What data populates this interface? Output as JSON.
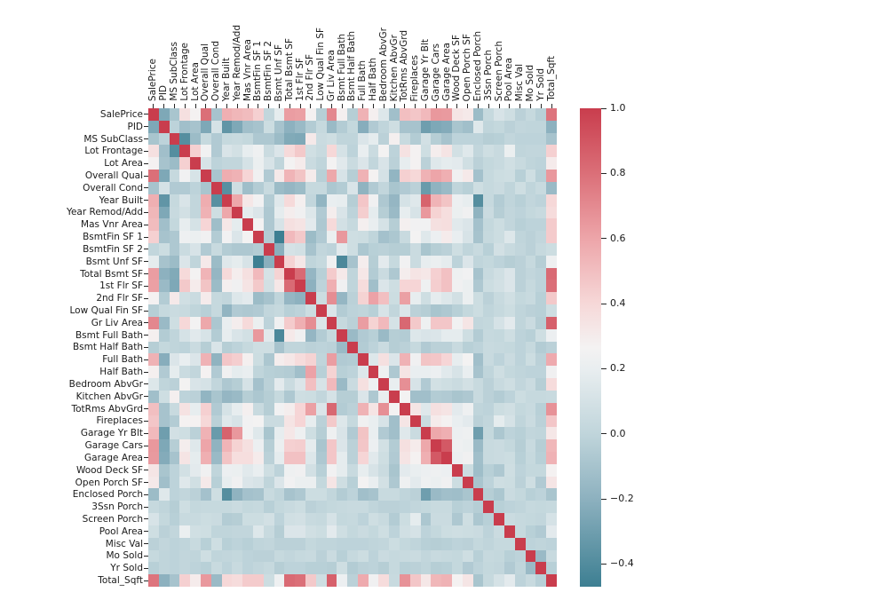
{
  "figure": {
    "background": "#ffffff",
    "title": ""
  },
  "chart_data": {
    "type": "heatmap",
    "title": "",
    "description": "Correlation matrix heatmap of Ames housing features",
    "labels": [
      "SalePrice",
      "PID",
      "MS SubClass",
      "Lot Frontage",
      "Lot Area",
      "Overall Qual",
      "Overall Cond",
      "Year Built",
      "Year Remod/Add",
      "Mas Vnr Area",
      "BsmtFin SF 1",
      "BsmtFin SF 2",
      "Bsmt Unf SF",
      "Total Bsmt SF",
      "1st Flr SF",
      "2nd Flr SF",
      "Low Qual Fin SF",
      "Gr Liv Area",
      "Bsmt Full Bath",
      "Bsmt Half Bath",
      "Full Bath",
      "Half Bath",
      "Bedroom AbvGr",
      "Kitchen AbvGr",
      "TotRms AbvGrd",
      "Fireplaces",
      "Garage Yr Blt",
      "Garage Cars",
      "Garage Area",
      "Wood Deck SF",
      "Open Porch SF",
      "Enclosed Porch",
      "3Ssn Porch",
      "Screen Porch",
      "Pool Area",
      "Misc Val",
      "Mo Sold",
      "Yr Sold",
      "Total_Sqft"
    ],
    "matrix_symmetric": true,
    "matrix_upper_triangle": [
      [
        1.0,
        -0.25,
        -0.09,
        0.36,
        0.27,
        0.8,
        -0.1,
        0.56,
        0.53,
        0.51,
        0.43,
        0.01,
        0.18,
        0.63,
        0.62,
        0.27,
        -0.04,
        0.71,
        0.28,
        -0.04,
        0.55,
        0.28,
        0.14,
        -0.12,
        0.5,
        0.47,
        0.52,
        0.65,
        0.64,
        0.33,
        0.31,
        -0.14,
        0.03,
        0.11,
        0.07,
        -0.02,
        0.03,
        -0.03,
        0.78
      ],
      [
        1.0,
        -0.01,
        -0.12,
        -0.1,
        -0.25,
        0.1,
        -0.35,
        -0.25,
        -0.12,
        -0.1,
        0.06,
        -0.1,
        -0.2,
        -0.15,
        -0.05,
        0.03,
        -0.15,
        -0.05,
        0.02,
        -0.22,
        -0.06,
        0.0,
        0.07,
        -0.1,
        -0.1,
        -0.3,
        -0.25,
        -0.23,
        -0.09,
        -0.12,
        0.15,
        0.0,
        0.02,
        -0.02,
        0.01,
        0.0,
        0.0,
        -0.2
      ],
      [
        1.0,
        -0.39,
        -0.14,
        0.03,
        -0.06,
        0.03,
        0.04,
        0.02,
        -0.07,
        -0.07,
        -0.14,
        -0.24,
        -0.25,
        0.31,
        0.05,
        0.07,
        0.0,
        0.0,
        0.13,
        0.18,
        -0.02,
        0.28,
        0.04,
        -0.05,
        0.09,
        -0.04,
        -0.1,
        -0.01,
        -0.01,
        -0.01,
        -0.04,
        -0.03,
        0.01,
        -0.01,
        -0.01,
        -0.01,
        -0.1
      ],
      [
        1.0,
        0.43,
        0.25,
        -0.06,
        0.12,
        0.09,
        0.19,
        0.23,
        0.05,
        0.13,
        0.39,
        0.46,
        0.08,
        0.04,
        0.4,
        0.1,
        -0.01,
        0.2,
        0.05,
        0.26,
        -0.01,
        0.35,
        0.27,
        0.07,
        0.29,
        0.34,
        0.09,
        0.15,
        0.01,
        0.07,
        0.04,
        0.21,
        0.0,
        0.01,
        0.01,
        0.43
      ],
      [
        1.0,
        0.11,
        -0.01,
        0.01,
        0.01,
        0.1,
        0.21,
        0.11,
        0.0,
        0.26,
        0.3,
        0.05,
        0.0,
        0.26,
        0.16,
        0.05,
        0.13,
        0.01,
        0.12,
        -0.02,
        0.19,
        0.27,
        -0.02,
        0.15,
        0.18,
        0.17,
        0.08,
        -0.02,
        0.02,
        0.04,
        0.08,
        0.04,
        0.0,
        -0.01,
        0.3
      ],
      [
        1.0,
        -0.09,
        0.57,
        0.55,
        0.41,
        0.24,
        -0.06,
        0.31,
        0.54,
        0.48,
        0.3,
        -0.03,
        0.59,
        0.11,
        -0.04,
        0.55,
        0.27,
        0.1,
        -0.18,
        0.43,
        0.4,
        0.55,
        0.6,
        0.56,
        0.24,
        0.31,
        -0.11,
        0.03,
        0.06,
        0.07,
        -0.03,
        0.07,
        -0.03,
        0.65
      ],
      [
        1.0,
        -0.38,
        0.07,
        -0.13,
        -0.05,
        0.04,
        -0.14,
        -0.17,
        -0.14,
        0.03,
        0.03,
        -0.08,
        -0.05,
        0.12,
        -0.19,
        -0.06,
        0.01,
        -0.09,
        -0.06,
        -0.02,
        -0.32,
        -0.19,
        -0.15,
        0.0,
        -0.03,
        0.07,
        0.03,
        0.05,
        0.0,
        0.07,
        0.0,
        0.04,
        -0.15
      ],
      [
        1.0,
        0.59,
        0.32,
        0.25,
        -0.05,
        0.15,
        0.39,
        0.28,
        0.01,
        -0.18,
        0.2,
        0.19,
        -0.04,
        0.47,
        0.24,
        -0.07,
        -0.17,
        0.1,
        0.15,
        0.85,
        0.54,
        0.48,
        0.22,
        0.19,
        -0.39,
        0.03,
        -0.05,
        0.0,
        -0.03,
        0.01,
        -0.01,
        0.4
      ],
      [
        1.0,
        0.18,
        0.13,
        -0.07,
        0.18,
        0.29,
        0.24,
        0.14,
        -0.06,
        0.29,
        0.12,
        -0.01,
        0.44,
        0.18,
        -0.04,
        -0.15,
        0.19,
        0.11,
        0.65,
        0.42,
        0.37,
        0.21,
        0.24,
        -0.19,
        0.05,
        -0.04,
        0.01,
        -0.01,
        0.02,
        0.04,
        0.38
      ],
      [
        1.0,
        0.26,
        -0.07,
        0.11,
        0.36,
        0.34,
        0.17,
        -0.07,
        0.39,
        0.09,
        0.03,
        0.28,
        0.2,
        0.1,
        -0.04,
        0.28,
        0.25,
        0.25,
        0.36,
        0.37,
        0.16,
        0.13,
        -0.11,
        0.02,
        0.06,
        0.01,
        -0.03,
        -0.01,
        -0.01,
        0.45
      ],
      [
        1.0,
        -0.05,
        -0.47,
        0.52,
        0.46,
        -0.14,
        -0.06,
        0.21,
        0.65,
        0.07,
        0.06,
        0.0,
        -0.11,
        -0.08,
        0.04,
        0.26,
        0.15,
        0.22,
        0.3,
        0.2,
        0.11,
        -0.1,
        0.03,
        0.06,
        0.14,
        0.0,
        -0.02,
        0.01,
        0.45
      ],
      [
        1.0,
        -0.21,
        0.1,
        0.09,
        -0.1,
        0.01,
        -0.01,
        0.16,
        0.07,
        -0.08,
        -0.03,
        -0.02,
        -0.04,
        -0.04,
        0.05,
        -0.09,
        -0.04,
        -0.02,
        0.07,
        0.0,
        0.04,
        -0.03,
        0.09,
        0.04,
        0.01,
        -0.02,
        0.03,
        0.06
      ],
      [
        1.0,
        0.42,
        0.32,
        0.0,
        0.03,
        0.24,
        -0.42,
        -0.1,
        0.29,
        -0.04,
        0.17,
        0.03,
        0.25,
        0.05,
        0.19,
        0.21,
        0.18,
        -0.01,
        0.13,
        0.0,
        0.02,
        -0.01,
        -0.04,
        -0.02,
        0.03,
        -0.04,
        0.23
      ],
      [
        1.0,
        0.82,
        -0.17,
        -0.03,
        0.45,
        0.31,
        0.0,
        0.32,
        -0.05,
        0.05,
        -0.07,
        0.29,
        0.34,
        0.32,
        0.43,
        0.49,
        0.23,
        0.25,
        -0.1,
        0.04,
        0.08,
        0.13,
        -0.02,
        0.01,
        -0.01,
        0.82
      ],
      [
        1.0,
        -0.2,
        -0.01,
        0.56,
        0.24,
        0.0,
        0.38,
        -0.12,
        0.13,
        0.07,
        0.41,
        0.41,
        0.23,
        0.44,
        0.49,
        0.24,
        0.21,
        -0.07,
        0.06,
        0.09,
        0.13,
        -0.02,
        0.03,
        -0.01,
        0.8
      ],
      [
        1.0,
        0.06,
        0.69,
        -0.17,
        -0.02,
        0.42,
        0.61,
        0.5,
        0.06,
        0.62,
        0.19,
        0.07,
        0.18,
        0.14,
        0.09,
        0.21,
        0.06,
        -0.02,
        0.04,
        0.08,
        0.02,
        0.04,
        -0.03,
        0.46
      ],
      [
        1.0,
        0.13,
        -0.05,
        -0.01,
        0.0,
        -0.03,
        0.11,
        0.01,
        0.13,
        -0.02,
        -0.04,
        -0.09,
        -0.07,
        -0.03,
        0.02,
        0.06,
        0.0,
        0.03,
        0.06,
        0.0,
        -0.02,
        -0.03,
        0.07
      ],
      [
        1.0,
        0.03,
        -0.02,
        0.63,
        0.42,
        0.52,
        0.1,
        0.83,
        0.46,
        0.23,
        0.47,
        0.47,
        0.25,
        0.33,
        0.01,
        0.02,
        0.1,
        0.17,
        0.0,
        0.05,
        -0.04,
        0.86
      ],
      [
        1.0,
        -0.15,
        -0.06,
        -0.03,
        -0.15,
        -0.04,
        -0.05,
        0.14,
        0.12,
        0.13,
        0.18,
        0.18,
        0.07,
        -0.05,
        0.03,
        0.02,
        0.07,
        -0.01,
        -0.03,
        0.07,
        0.22
      ],
      [
        1.0,
        -0.05,
        -0.01,
        0.05,
        -0.04,
        -0.02,
        0.03,
        -0.06,
        -0.02,
        -0.02,
        0.04,
        -0.03,
        -0.01,
        0.04,
        0.03,
        0.02,
        -0.01,
        0.03,
        -0.05,
        -0.02
      ],
      [
        1.0,
        0.14,
        0.36,
        0.13,
        0.55,
        0.24,
        0.48,
        0.47,
        0.41,
        0.19,
        0.26,
        -0.12,
        0.04,
        -0.01,
        0.05,
        -0.01,
        0.06,
        -0.02,
        0.58
      ],
      [
        1.0,
        0.23,
        -0.07,
        0.34,
        0.2,
        0.2,
        0.22,
        0.16,
        0.11,
        0.2,
        -0.1,
        0.0,
        0.07,
        0.02,
        0.0,
        -0.01,
        -0.01,
        0.24
      ],
      [
        1.0,
        0.2,
        0.68,
        0.11,
        -0.06,
        0.09,
        0.07,
        0.05,
        0.09,
        0.04,
        -0.02,
        0.04,
        0.07,
        0.01,
        0.05,
        -0.04,
        0.38
      ],
      [
        1.0,
        0.26,
        -0.12,
        -0.12,
        -0.05,
        -0.06,
        -0.09,
        -0.07,
        0.04,
        -0.02,
        -0.05,
        -0.01,
        0.06,
        0.03,
        0.03,
        0.04
      ],
      [
        1.0,
        0.33,
        0.15,
        0.36,
        0.34,
        0.17,
        0.23,
        0.0,
        -0.01,
        0.06,
        0.08,
        0.02,
        0.04,
        -0.03,
        0.67
      ],
      [
        1.0,
        0.05,
        0.3,
        0.27,
        0.2,
        0.17,
        -0.02,
        0.01,
        0.18,
        0.1,
        0.0,
        0.05,
        -0.02,
        0.47
      ],
      [
        1.0,
        0.59,
        0.56,
        0.22,
        0.23,
        -0.3,
        0.02,
        -0.08,
        -0.01,
        -0.03,
        0.01,
        0.0,
        0.32
      ],
      [
        1.0,
        0.89,
        0.23,
        0.21,
        -0.15,
        0.04,
        0.05,
        0.02,
        -0.04,
        0.04,
        -0.04,
        0.53
      ],
      [
        1.0,
        0.22,
        0.24,
        -0.12,
        0.04,
        0.05,
        0.06,
        -0.03,
        0.03,
        -0.03,
        0.55
      ],
      [
        1.0,
        0.06,
        -0.13,
        -0.03,
        -0.07,
        0.07,
        -0.01,
        0.02,
        0.02,
        0.27
      ],
      [
        1.0,
        -0.09,
        -0.01,
        0.07,
        0.06,
        -0.02,
        0.07,
        -0.06,
        0.33
      ],
      [
        1.0,
        -0.04,
        -0.08,
        0.05,
        0.02,
        -0.03,
        -0.01,
        -0.09
      ],
      [
        1.0,
        -0.03,
        -0.01,
        0.0,
        0.03,
        0.02,
        0.03
      ],
      [
        1.0,
        0.05,
        0.03,
        0.02,
        0.01,
        0.1
      ],
      [
        1.0,
        0.03,
        -0.03,
        -0.06,
        0.17
      ],
      [
        1.0,
        -0.01,
        0.0,
        -0.01
      ],
      [
        1.0,
        -0.15,
        0.04
      ],
      [
        1.0,
        -0.03
      ],
      [
        1.0
      ]
    ],
    "value_range": {
      "vmin": -0.47,
      "vmax": 1.0
    },
    "colormap": {
      "name": "diverging-teal-white-red",
      "stops": [
        [
          -0.47,
          "#3d7f92"
        ],
        [
          -0.2,
          "#8db1bf"
        ],
        [
          0.0,
          "#c0d5db"
        ],
        [
          0.2,
          "#e9eef0"
        ],
        [
          0.265,
          "#f4f2f2"
        ],
        [
          0.4,
          "#f6d8d8"
        ],
        [
          0.6,
          "#eda5a9"
        ],
        [
          0.8,
          "#db6f78"
        ],
        [
          1.0,
          "#c93d4d"
        ]
      ]
    },
    "colorbar": {
      "tick_labels": [
        "1.0",
        "0.8",
        "0.6",
        "0.4",
        "0.2",
        "0.0",
        "−0.2",
        "−0.4"
      ],
      "tick_values": [
        1.0,
        0.8,
        0.6,
        0.4,
        0.2,
        0.0,
        -0.2,
        -0.4
      ]
    },
    "axes": {
      "x_labels_position": "top",
      "y_labels_position": "left",
      "tick_color": "#262626",
      "grid": false,
      "legend_position": "right-colorbar"
    }
  }
}
